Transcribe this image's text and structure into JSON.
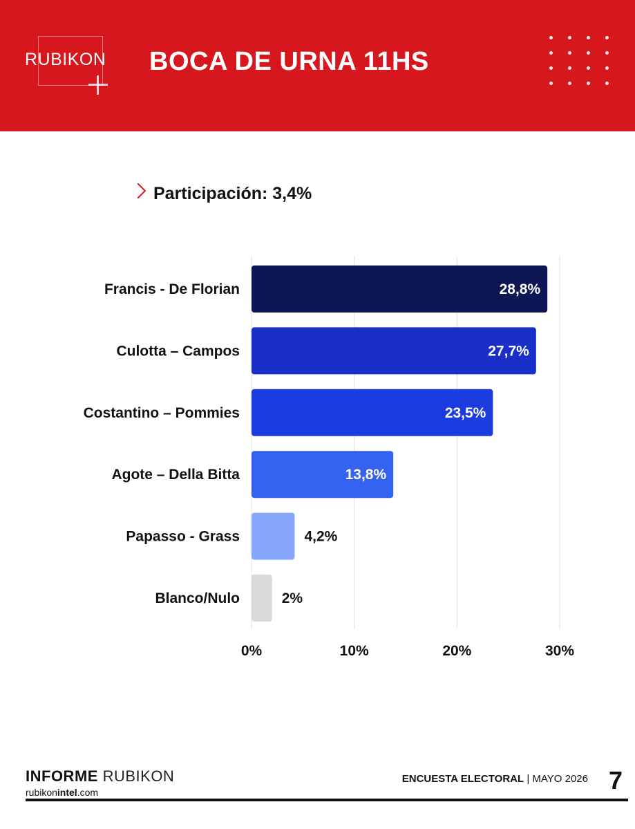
{
  "header": {
    "logo": "RUBIKON",
    "title": "BOCA DE URNA 11HS"
  },
  "participation": {
    "text": "Participación: 3,4%"
  },
  "chart_data": {
    "type": "bar",
    "orientation": "horizontal",
    "categories": [
      "Francis - De Florian",
      "Culotta – Campos",
      "Costantino – Pommies",
      "Agote – Della Bitta",
      "Papasso - Grass",
      "Blanco/Nulo"
    ],
    "values": [
      28.8,
      27.7,
      23.5,
      13.8,
      4.2,
      2
    ],
    "value_labels": [
      "28,8%",
      "27,7%",
      "23,5%",
      "13,8%",
      "4,2%",
      "2%"
    ],
    "colors": [
      "#0e1654",
      "#1a2fc8",
      "#1d3ce0",
      "#3563ef",
      "#86a7fb",
      "#dadada"
    ],
    "xlim": [
      0,
      30
    ],
    "x_ticks": [
      0,
      10,
      20,
      30
    ],
    "x_tick_labels": [
      "0%",
      "10%",
      "20%",
      "30%"
    ],
    "grid": true
  },
  "footer": {
    "brand_bold": "INFORME",
    "brand_light": "RUBIKON",
    "url_pre": "rubikon",
    "url_bold": "intel",
    "url_post": ".com",
    "report_bold": "ENCUESTA ELECTORAL",
    "report_sep": " | ",
    "report_date": "MAYO 2026",
    "page": "7"
  }
}
